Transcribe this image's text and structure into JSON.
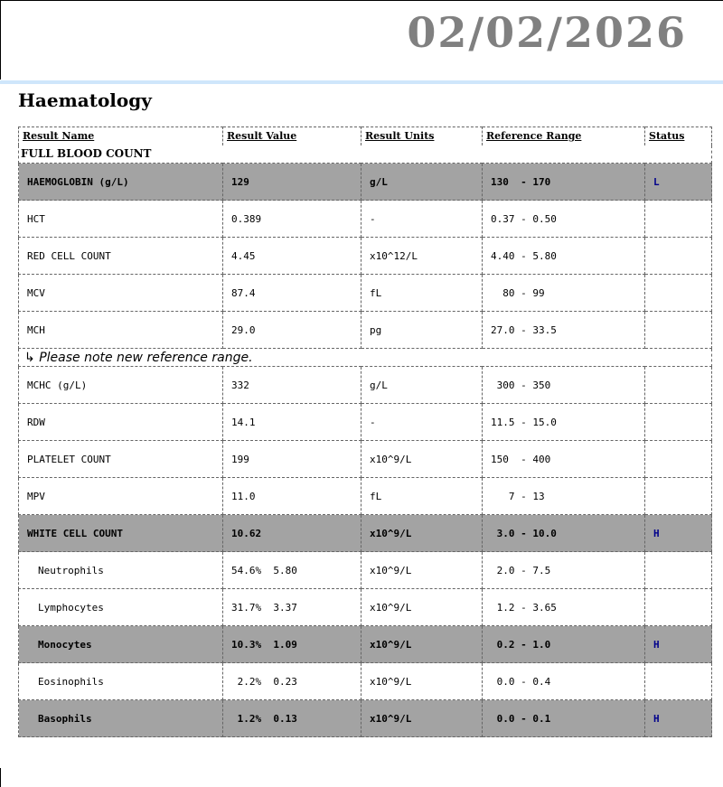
{
  "header": {
    "date": "02/02/2026"
  },
  "section_title": "Haematology",
  "columns": [
    "Result Name",
    "Result Value",
    "Result Units",
    "Reference Range",
    "Status"
  ],
  "panel": "FULL BLOOD COUNT",
  "note": "Please note new reference range.",
  "rows": [
    {
      "name": "HAEMOGLOBIN (g/L)",
      "value": "129",
      "units": "g/L",
      "range": "130  - 170",
      "status": "L"
    },
    {
      "name": "HCT",
      "value": "0.389",
      "units": "-",
      "range": "0.37 - 0.50",
      "status": ""
    },
    {
      "name": "RED CELL COUNT",
      "value": "4.45",
      "units": "x10^12/L",
      "range": "4.40 - 5.80",
      "status": ""
    },
    {
      "name": "MCV",
      "value": "87.4",
      "units": "fL",
      "range": "  80 - 99",
      "status": ""
    },
    {
      "name": "MCH",
      "value": "29.0",
      "units": "pg",
      "range": "27.0 - 33.5",
      "status": ""
    },
    {
      "name": "MCHC (g/L)",
      "value": "332",
      "units": "g/L",
      "range": " 300 - 350",
      "status": ""
    },
    {
      "name": "RDW",
      "value": "14.1",
      "units": "-",
      "range": "11.5 - 15.0",
      "status": ""
    },
    {
      "name": "PLATELET COUNT",
      "value": "199",
      "units": "x10^9/L",
      "range": "150  - 400",
      "status": ""
    },
    {
      "name": "MPV",
      "value": "11.0",
      "units": "fL",
      "range": "   7 - 13",
      "status": ""
    },
    {
      "name": "WHITE CELL COUNT",
      "value": "10.62",
      "units": "x10^9/L",
      "range": " 3.0 - 10.0",
      "status": "H"
    },
    {
      "name": "Neutrophils",
      "value": "54.6%  5.80",
      "units": "x10^9/L",
      "range": " 2.0 - 7.5",
      "status": ""
    },
    {
      "name": "Lymphocytes",
      "value": "31.7%  3.37",
      "units": "x10^9/L",
      "range": " 1.2 - 3.65",
      "status": ""
    },
    {
      "name": "Monocytes",
      "value": "10.3%  1.09",
      "units": "x10^9/L",
      "range": " 0.2 - 1.0",
      "status": "H"
    },
    {
      "name": "Eosinophils",
      "value": " 2.2%  0.23",
      "units": "x10^9/L",
      "range": " 0.0 - 0.4",
      "status": ""
    },
    {
      "name": "Basophils",
      "value": " 1.2%  0.13",
      "units": "x10^9/L",
      "range": " 0.0 - 0.1",
      "status": "H"
    }
  ]
}
